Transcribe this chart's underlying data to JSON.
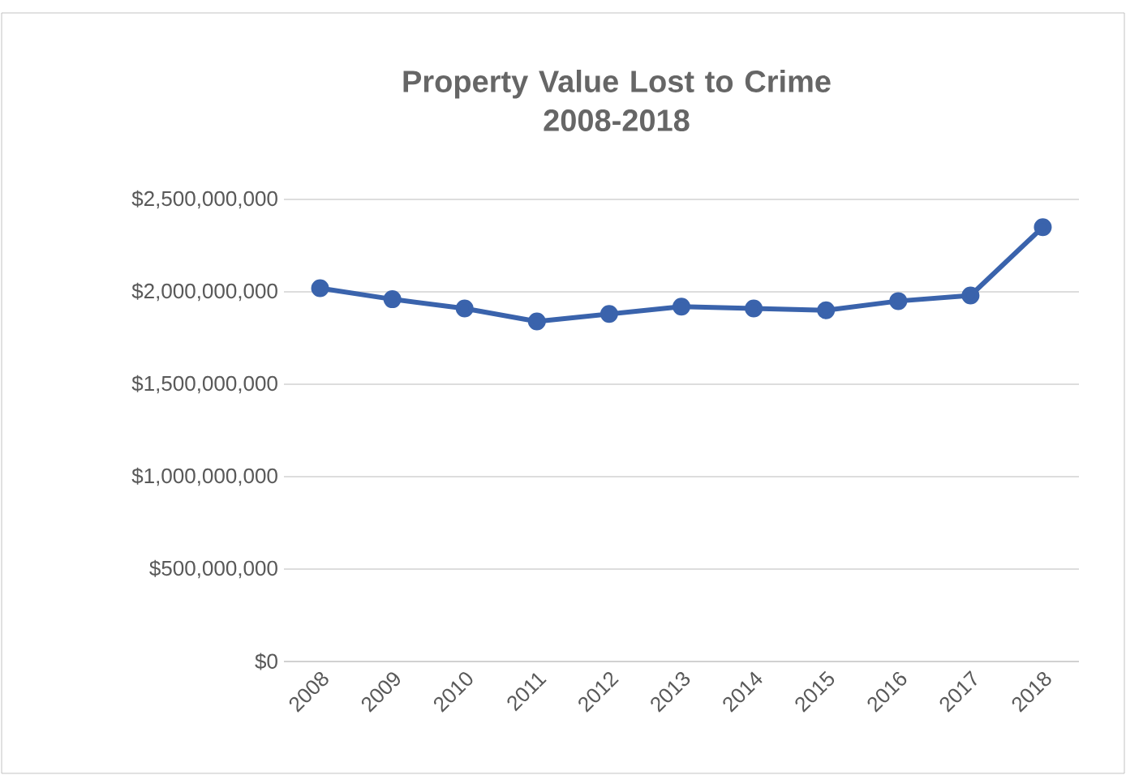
{
  "chart_data": {
    "type": "line",
    "title": "Property Value Lost to Crime\n2008-2018",
    "categories": [
      "2008",
      "2009",
      "2010",
      "2011",
      "2012",
      "2013",
      "2014",
      "2015",
      "2016",
      "2017",
      "2018"
    ],
    "series": [
      {
        "color": "#3a63ac",
        "values": [
          2020000000,
          1960000000,
          1910000000,
          1840000000,
          1880000000,
          1920000000,
          1910000000,
          1900000000,
          1950000000,
          1980000000,
          2350000000
        ]
      }
    ],
    "ylim": [
      0,
      2500000000
    ],
    "yticks": [
      {
        "value": 0,
        "label": "$0"
      },
      {
        "value": 500000000,
        "label": "$500,000,000"
      },
      {
        "value": 1000000000,
        "label": "$1,000,000,000"
      },
      {
        "value": 1500000000,
        "label": "$1,500,000,000"
      },
      {
        "value": 2000000000,
        "label": "$2,000,000,000"
      },
      {
        "value": 2500000000,
        "label": "$2,500,000,000"
      }
    ],
    "grid": "y",
    "marker": "circle",
    "line_style": "solid"
  }
}
